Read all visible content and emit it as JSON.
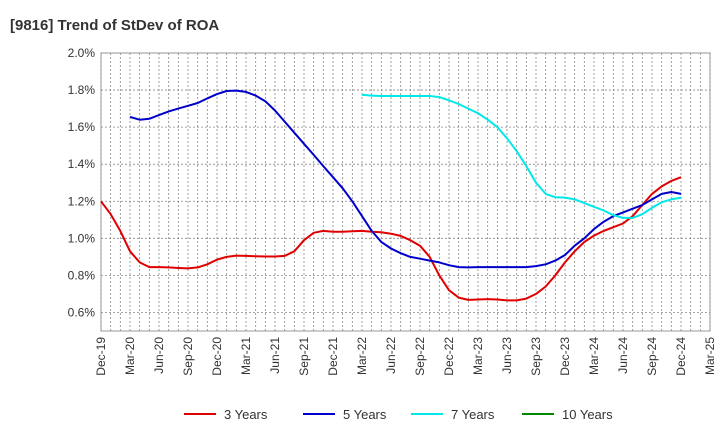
{
  "chart_data": {
    "type": "line",
    "title": "[9816]  Trend of StDev of ROA",
    "xlabel": "",
    "ylabel": "",
    "ylim": [
      0.5,
      2.0
    ],
    "y_ticks": [
      "0.6%",
      "0.8%",
      "1.0%",
      "1.2%",
      "1.4%",
      "1.6%",
      "1.8%",
      "2.0%"
    ],
    "y_tick_values": [
      0.6,
      0.8,
      1.0,
      1.2,
      1.4,
      1.6,
      1.8,
      2.0
    ],
    "x_ticks": [
      "Dec-19",
      "Mar-20",
      "Jun-20",
      "Sep-20",
      "Dec-20",
      "Mar-21",
      "Jun-21",
      "Sep-21",
      "Dec-21",
      "Mar-22",
      "Jun-22",
      "Sep-22",
      "Dec-22",
      "Mar-23",
      "Jun-23",
      "Sep-23",
      "Dec-23",
      "Mar-24",
      "Jun-24",
      "Sep-24",
      "Dec-24",
      "Mar-25"
    ],
    "grid": true,
    "legend_position": "bottom",
    "series": [
      {
        "name": "3 Years",
        "color": "#e00000",
        "x": [
          "Dec-19",
          "Jan-20",
          "Feb-20",
          "Mar-20",
          "Apr-20",
          "May-20",
          "Jun-20",
          "Jul-20",
          "Aug-20",
          "Sep-20",
          "Oct-20",
          "Nov-20",
          "Dec-20",
          "Jan-21",
          "Feb-21",
          "Mar-21",
          "Apr-21",
          "May-21",
          "Jun-21",
          "Jul-21",
          "Aug-21",
          "Sep-21",
          "Oct-21",
          "Nov-21",
          "Dec-21",
          "Jan-22",
          "Feb-22",
          "Mar-22",
          "Apr-22",
          "May-22",
          "Jun-22",
          "Jul-22",
          "Aug-22",
          "Sep-22",
          "Oct-22",
          "Nov-22",
          "Dec-22",
          "Jan-23",
          "Feb-23",
          "Mar-23",
          "Apr-23",
          "May-23",
          "Jun-23",
          "Jul-23",
          "Aug-23",
          "Sep-23",
          "Oct-23",
          "Nov-23",
          "Dec-23",
          "Jan-24",
          "Feb-24",
          "Mar-24",
          "Apr-24",
          "May-24",
          "Jun-24",
          "Jul-24",
          "Aug-24",
          "Sep-24",
          "Oct-24",
          "Nov-24",
          "Dec-24"
        ],
        "values": [
          1.2,
          1.13,
          1.04,
          0.93,
          0.87,
          0.845,
          0.845,
          0.843,
          0.84,
          0.838,
          0.843,
          0.86,
          0.885,
          0.9,
          0.907,
          0.905,
          0.903,
          0.902,
          0.902,
          0.905,
          0.93,
          0.99,
          1.03,
          1.04,
          1.035,
          1.035,
          1.038,
          1.04,
          1.036,
          1.033,
          1.025,
          1.013,
          0.99,
          0.96,
          0.9,
          0.8,
          0.72,
          0.68,
          0.668,
          0.67,
          0.672,
          0.67,
          0.665,
          0.665,
          0.675,
          0.7,
          0.74,
          0.8,
          0.87,
          0.93,
          0.98,
          1.015,
          1.04,
          1.06,
          1.08,
          1.12,
          1.18,
          1.24,
          1.28,
          1.31,
          1.33
        ]
      },
      {
        "name": "5 Years",
        "color": "#0000cc",
        "x": [
          "Mar-20",
          "Apr-20",
          "May-20",
          "Jun-20",
          "Jul-20",
          "Aug-20",
          "Sep-20",
          "Oct-20",
          "Nov-20",
          "Dec-20",
          "Jan-21",
          "Feb-21",
          "Mar-21",
          "Apr-21",
          "May-21",
          "Jun-21",
          "Jul-21",
          "Aug-21",
          "Sep-21",
          "Oct-21",
          "Nov-21",
          "Dec-21",
          "Jan-22",
          "Feb-22",
          "Mar-22",
          "Apr-22",
          "May-22",
          "Jun-22",
          "Jul-22",
          "Aug-22",
          "Sep-22",
          "Oct-22",
          "Nov-22",
          "Dec-22",
          "Jan-23",
          "Feb-23",
          "Mar-23",
          "Apr-23",
          "May-23",
          "Jun-23",
          "Jul-23",
          "Aug-23",
          "Sep-23",
          "Oct-23",
          "Nov-23",
          "Dec-23",
          "Jan-24",
          "Feb-24",
          "Mar-24",
          "Apr-24",
          "May-24",
          "Jun-24",
          "Jul-24",
          "Aug-24",
          "Sep-24",
          "Oct-24",
          "Nov-24",
          "Dec-24"
        ],
        "values": [
          1.655,
          1.64,
          1.645,
          1.665,
          1.685,
          1.7,
          1.715,
          1.73,
          1.755,
          1.778,
          1.795,
          1.797,
          1.79,
          1.77,
          1.74,
          1.69,
          1.63,
          1.57,
          1.51,
          1.45,
          1.39,
          1.33,
          1.27,
          1.2,
          1.12,
          1.04,
          0.98,
          0.945,
          0.92,
          0.9,
          0.89,
          0.88,
          0.87,
          0.855,
          0.845,
          0.843,
          0.845,
          0.845,
          0.845,
          0.845,
          0.845,
          0.845,
          0.85,
          0.86,
          0.88,
          0.91,
          0.96,
          1.0,
          1.05,
          1.09,
          1.12,
          1.14,
          1.16,
          1.18,
          1.21,
          1.24,
          1.25,
          1.24
        ]
      },
      {
        "name": "7 Years",
        "color": "#00e8e8",
        "x": [
          "Mar-22",
          "Apr-22",
          "May-22",
          "Jun-22",
          "Jul-22",
          "Aug-22",
          "Sep-22",
          "Oct-22",
          "Nov-22",
          "Dec-22",
          "Jan-23",
          "Feb-23",
          "Mar-23",
          "Apr-23",
          "May-23",
          "Jun-23",
          "Jul-23",
          "Aug-23",
          "Sep-23",
          "Oct-23",
          "Nov-23",
          "Dec-23",
          "Jan-24",
          "Feb-24",
          "Mar-24",
          "Apr-24",
          "May-24",
          "Jun-24",
          "Jul-24",
          "Aug-24",
          "Sep-24",
          "Oct-24",
          "Nov-24",
          "Dec-24"
        ],
        "values": [
          1.775,
          1.77,
          1.768,
          1.768,
          1.768,
          1.768,
          1.768,
          1.768,
          1.762,
          1.745,
          1.725,
          1.7,
          1.675,
          1.64,
          1.6,
          1.54,
          1.47,
          1.39,
          1.3,
          1.24,
          1.222,
          1.22,
          1.21,
          1.19,
          1.17,
          1.15,
          1.125,
          1.11,
          1.11,
          1.13,
          1.165,
          1.195,
          1.21,
          1.22
        ]
      },
      {
        "name": "10 Years",
        "color": "#008800",
        "x": [],
        "values": []
      }
    ]
  }
}
